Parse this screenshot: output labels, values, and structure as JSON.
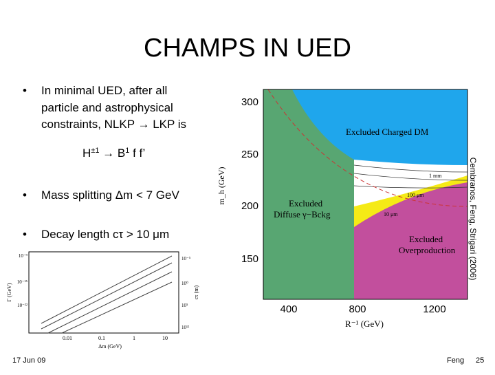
{
  "header": {
    "title": "CHAMPS IN UED"
  },
  "bullets": [
    {
      "lines": [
        "In minimal UED, after all",
        "particle and astrophysical",
        "constraints, NLKP → LKP is"
      ]
    },
    {
      "lines": [
        "Mass splitting Δm < 7 GeV"
      ]
    },
    {
      "lines": [
        "Decay length cτ > 10 μm"
      ]
    }
  ],
  "formula": [
    "H",
    "±1",
    " → B",
    "1",
    " f f’"
  ],
  "credit": "Cembranos, Feng, Strigari (2006)",
  "footer": {
    "date": "17 Jun 09",
    "author": "Feng",
    "page": "25"
  },
  "main_figure": {
    "y_label": "m_h (GeV)",
    "x_label": "R⁻¹ (GeV)",
    "y_ticks": [
      "300",
      "250",
      "200",
      "150"
    ],
    "x_ticks": [
      "400",
      "800",
      "1200"
    ],
    "regions": [
      "Excluded Charged DM",
      "Excluded",
      "Diffuse γ−Bckg",
      "Excluded",
      "Overproduction"
    ],
    "contours": [
      "1 mm",
      "100 μm",
      "10 μm"
    ]
  },
  "small_figure": {
    "y_label": "Γ (GeV)",
    "y2_label": "cτ (m)",
    "x_label": "Δm (GeV)",
    "y_ticks": [
      "10⁻⁹",
      "10⁻¹⁵",
      "10⁻²²"
    ],
    "y2_ticks": [
      "10⁻⁵",
      "10⁰",
      "10⁵",
      "10¹²"
    ],
    "x_ticks": [
      "0.01",
      "0.1",
      "1",
      "10"
    ]
  }
}
